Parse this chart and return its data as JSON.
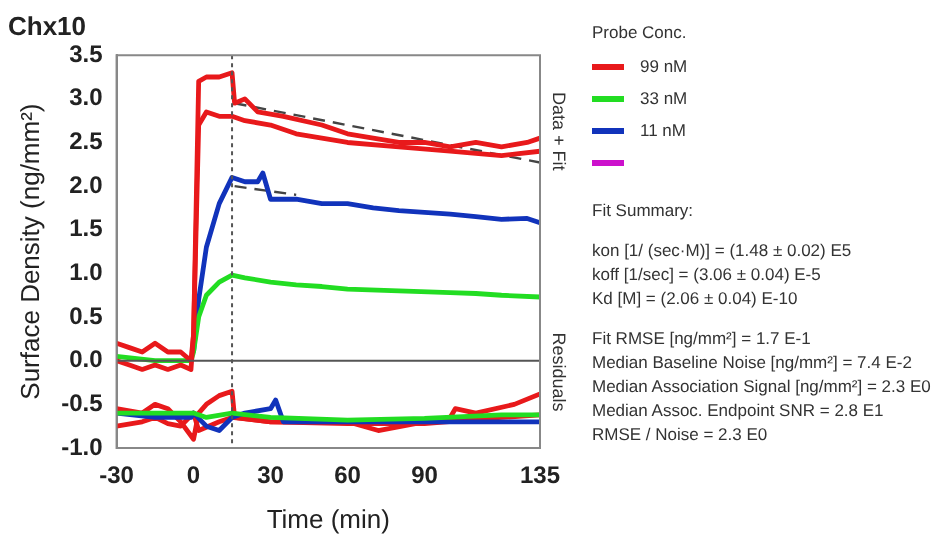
{
  "chart_data": {
    "type": "line",
    "title": "Chx10",
    "xlabel": "Time (min)",
    "ylabel": "Surface Density (ng/mm²)",
    "legend_title": "Probe Conc.",
    "legend": "right",
    "grid": false,
    "marker": "none",
    "line_style": "solid",
    "xlim": [
      -30,
      135
    ],
    "xticks": [
      -30,
      0,
      30,
      60,
      90,
      135
    ],
    "ylim": [
      -1.0,
      3.5
    ],
    "yticks": [
      {
        "value": -1.0,
        "label": "-1.0"
      },
      -0.5,
      {
        "value": 0,
        "label": "0.0"
      },
      0.5,
      {
        "value": 1.0,
        "label": "1.0"
      },
      1.5,
      {
        "value": 2.0,
        "label": "2.0"
      },
      2.5,
      {
        "value": 3.0,
        "label": "3.0"
      },
      3.5
    ],
    "series": [
      {
        "name": "99 nM",
        "color": "#e8191b",
        "x": [
          -30,
          -25,
          -20,
          -15,
          -10,
          -5,
          -1,
          0,
          2,
          5,
          10,
          15,
          16,
          20,
          25,
          35,
          50,
          60,
          70,
          80,
          90,
          100,
          110,
          120,
          130,
          135
        ],
        "values": [
          0.2,
          0.15,
          0.1,
          0.2,
          0.1,
          0.1,
          0.0,
          0.3,
          3.2,
          3.25,
          3.25,
          3.3,
          2.95,
          3.0,
          2.85,
          2.8,
          2.7,
          2.6,
          2.55,
          2.5,
          2.5,
          2.45,
          2.5,
          2.45,
          2.5,
          2.55
        ]
      },
      {
        "color": "#e8191b",
        "x": [
          -30,
          -25,
          -20,
          -15,
          -10,
          -5,
          -1,
          0,
          2,
          5,
          10,
          15,
          20,
          30,
          40,
          50,
          60,
          80,
          100,
          120,
          135
        ],
        "values": [
          0.0,
          -0.05,
          -0.1,
          -0.05,
          -0.1,
          -0.05,
          -0.1,
          0.3,
          2.7,
          2.85,
          2.8,
          2.8,
          2.75,
          2.7,
          2.6,
          2.55,
          2.5,
          2.45,
          2.4,
          2.35,
          2.4
        ]
      },
      {
        "name": "33 nM",
        "color": "#22dd22",
        "x": [
          -30,
          -15,
          -1,
          0,
          2,
          5,
          10,
          15,
          20,
          30,
          40,
          50,
          60,
          80,
          100,
          110,
          120,
          135
        ],
        "values": [
          0.05,
          0.0,
          0.0,
          0.1,
          0.5,
          0.75,
          0.9,
          0.98,
          0.95,
          0.9,
          0.87,
          0.85,
          0.82,
          0.8,
          0.78,
          0.77,
          0.75,
          0.73
        ]
      },
      {
        "name": "11 nM",
        "color": "#1133bb",
        "x": [
          0,
          2,
          5,
          10,
          15,
          20,
          25,
          27,
          30,
          40,
          50,
          60,
          70,
          80,
          90,
          100,
          110,
          120,
          130,
          135
        ],
        "values": [
          0.1,
          0.7,
          1.3,
          1.8,
          2.1,
          2.05,
          2.05,
          2.15,
          1.85,
          1.85,
          1.8,
          1.8,
          1.75,
          1.72,
          1.7,
          1.68,
          1.65,
          1.62,
          1.63,
          1.58
        ]
      },
      {
        "color": "#cc11cc"
      },
      {
        "color": "#444444",
        "line_style": "dashed",
        "x": [
          16,
          135
        ],
        "values": [
          2.95,
          2.27
        ]
      },
      {
        "color": "#444444",
        "line_style": "dashed",
        "x": [
          16,
          40
        ],
        "values": [
          2.0,
          1.9
        ]
      },
      {
        "color": "#22dd22",
        "x": [
          -30,
          -15,
          -1,
          0,
          5,
          15,
          30,
          60,
          90,
          120,
          135
        ],
        "values": [
          -0.6,
          -0.6,
          -0.6,
          -0.6,
          -0.65,
          -0.6,
          -0.65,
          -0.68,
          -0.66,
          -0.62,
          -0.62
        ]
      },
      {
        "color": "#1133bb",
        "x": [
          -30,
          -15,
          -1,
          0,
          5,
          10,
          15,
          20,
          30,
          32,
          35,
          60,
          90,
          120,
          135
        ],
        "values": [
          -0.6,
          -0.65,
          -0.65,
          -0.6,
          -0.75,
          -0.8,
          -0.65,
          -0.6,
          -0.55,
          -0.45,
          -0.7,
          -0.7,
          -0.7,
          -0.7,
          -0.7
        ]
      },
      {
        "color": "#e8191b",
        "x": [
          -30,
          -20,
          -15,
          -10,
          -5,
          0,
          2,
          5,
          10,
          15,
          16,
          30,
          60,
          72,
          90,
          100,
          102,
          110,
          125,
          135
        ],
        "values": [
          -0.55,
          -0.6,
          -0.5,
          -0.55,
          -0.7,
          -0.9,
          -0.6,
          -0.5,
          -0.4,
          -0.35,
          -0.65,
          -0.7,
          -0.7,
          -0.8,
          -0.7,
          -0.65,
          -0.55,
          -0.6,
          -0.5,
          -0.38
        ]
      },
      {
        "color": "#e8191b",
        "x": [
          -30,
          -20,
          -15,
          -10,
          -5,
          0,
          2,
          10,
          15,
          30,
          60,
          90,
          120,
          135
        ],
        "values": [
          -0.75,
          -0.7,
          -0.65,
          -0.72,
          -0.75,
          -0.6,
          -0.8,
          -0.7,
          -0.65,
          -0.7,
          -0.72,
          -0.72,
          -0.65,
          -0.62
        ]
      }
    ],
    "ref_lines": [
      {
        "axis": "y",
        "value": 0,
        "color": "#555555",
        "line_style": "solid"
      },
      {
        "axis": "x",
        "value": 15,
        "color": "#555555",
        "line_style": "dotted"
      }
    ],
    "annotations": [
      "Data + Fit",
      "Residuals",
      "Fit Summary:",
      "kon  [1/ (sec·M)]  =   (1.48 ± 0.02) E5",
      "koff  [1/sec]  =   (3.06 ± 0.04) E-5",
      "Kd  [M]  =   (2.06 ± 0.04) E-10",
      "Fit RMSE [ng/mm²]  =   1.7 E-1",
      "Median Baseline Noise [ng/mm²]  =   7.4 E-2",
      "Median Association Signal [ng/mm²]  =   2.3 E0",
      "Median Assoc. Endpoint SNR  =   2.8 E1",
      "RMSE / Noise  =   2.3 E0"
    ]
  }
}
